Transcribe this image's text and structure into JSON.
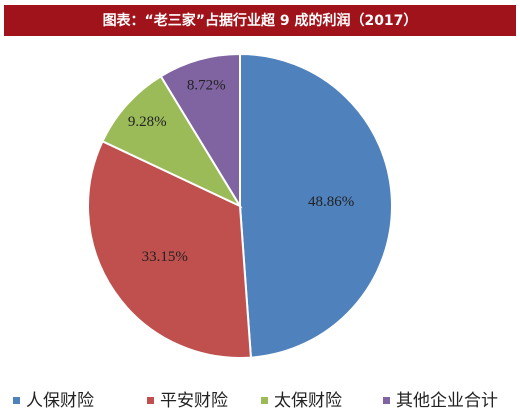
{
  "chart_data": {
    "type": "pie",
    "title": "图表：“老三家”占据行业超 9 成的利润（2017）",
    "categories": [
      "人保财险",
      "平安财险",
      "太保财险",
      "其他企业合计"
    ],
    "values": [
      48.86,
      33.15,
      9.28,
      8.72
    ],
    "value_labels": [
      "48.86%",
      "33.15%",
      "9.28%",
      "8.72%"
    ],
    "colors": [
      "#4f81bd",
      "#c0504d",
      "#9bbb59",
      "#8064a2"
    ],
    "legend": "bottom"
  }
}
